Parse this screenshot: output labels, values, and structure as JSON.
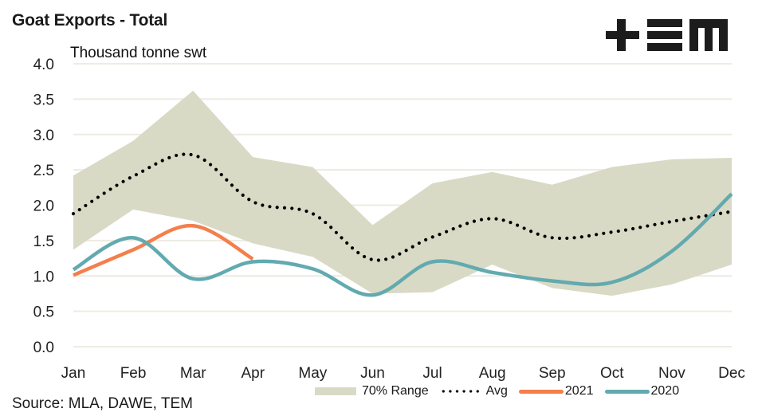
{
  "header": {
    "title": "Goat Exports - Total",
    "logo": "+EM logo",
    "source": "Source: MLA, DAWE, TEM"
  },
  "chart_data": {
    "type": "line",
    "title": "Goat Exports - Total",
    "ylabel": "Thousand tonne swt",
    "xlabel": "",
    "categories": [
      "Jan",
      "Feb",
      "Mar",
      "Apr",
      "May",
      "Jun",
      "Jul",
      "Aug",
      "Sep",
      "Oct",
      "Nov",
      "Dec"
    ],
    "ylim": [
      0,
      4.0
    ],
    "yticks": [
      "0.0",
      "0.5",
      "1.0",
      "1.5",
      "2.0",
      "2.5",
      "3.0",
      "3.5",
      "4.0"
    ],
    "grid": true,
    "legend_position": "bottom-right",
    "range_band": {
      "name": "70% Range",
      "color": "#d9dac5",
      "upper": [
        2.42,
        2.91,
        3.62,
        2.68,
        2.54,
        1.72,
        2.31,
        2.47,
        2.29,
        2.54,
        2.65,
        2.67
      ],
      "lower": [
        1.37,
        1.94,
        1.78,
        1.46,
        1.27,
        0.75,
        0.77,
        1.16,
        0.83,
        0.72,
        0.88,
        1.16
      ]
    },
    "series": [
      {
        "name": "Avg",
        "style": "dotted",
        "color": "#000000",
        "values": [
          1.88,
          2.41,
          2.71,
          2.05,
          1.88,
          1.23,
          1.55,
          1.81,
          1.54,
          1.62,
          1.77,
          1.91
        ]
      },
      {
        "name": "2021",
        "style": "solid",
        "color": "#f47f4b",
        "values": [
          1.01,
          1.37,
          1.71,
          1.24,
          null,
          null,
          null,
          null,
          null,
          null,
          null,
          null
        ]
      },
      {
        "name": "2020",
        "style": "solid",
        "color": "#62aab0",
        "values": [
          1.09,
          1.54,
          0.96,
          1.2,
          1.1,
          0.73,
          1.2,
          1.05,
          0.93,
          0.91,
          1.35,
          2.16
        ]
      }
    ]
  },
  "legend": [
    {
      "label": "70% Range",
      "key": "range"
    },
    {
      "label": "Avg",
      "key": "avg"
    },
    {
      "label": "2021",
      "key": "2021"
    },
    {
      "label": "2020",
      "key": "2020"
    }
  ]
}
